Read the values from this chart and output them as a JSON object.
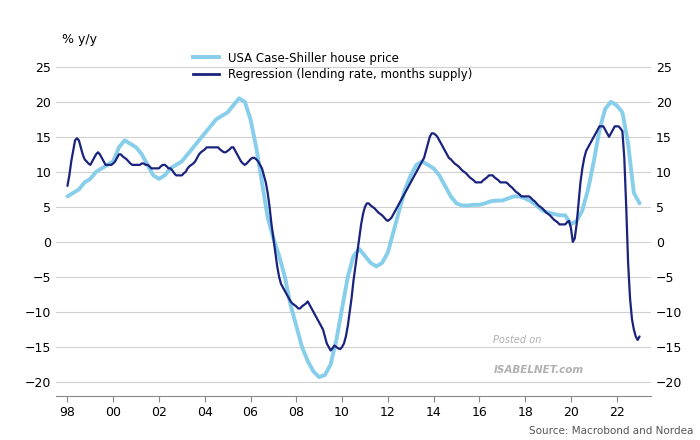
{
  "ylabel_left": "% y/y",
  "source_text": "Source: Macrobond and Nordea",
  "watermark_line1": "Posted on",
  "watermark_line2": "ISABELNET.com",
  "ylim": [
    -22,
    27
  ],
  "yticks": [
    -20,
    -15,
    -10,
    -5,
    0,
    5,
    10,
    15,
    20,
    25
  ],
  "bg_color": "#ffffff",
  "grid_color": "#d0d0d0",
  "cs_color": "#87CEEB",
  "cs_lw": 2.8,
  "reg_color": "#1a237e",
  "reg_lw": 1.6,
  "legend_cs": "USA Case-Shiller house price",
  "legend_reg": "Regression (lending rate, months supply)",
  "xtick_positions": [
    1998,
    2000,
    2002,
    2004,
    2006,
    2008,
    2010,
    2012,
    2014,
    2016,
    2018,
    2020,
    2022
  ],
  "xtick_labels": [
    "98",
    "00",
    "02",
    "04",
    "06",
    "08",
    "10",
    "12",
    "14",
    "16",
    "18",
    "20",
    "22"
  ],
  "xlim": [
    1997.5,
    2023.5
  ],
  "case_shiller_x": [
    1998.0,
    1998.25,
    1998.5,
    1998.75,
    1999.0,
    1999.25,
    1999.5,
    1999.75,
    2000.0,
    2000.25,
    2000.5,
    2000.75,
    2001.0,
    2001.25,
    2001.5,
    2001.75,
    2002.0,
    2002.25,
    2002.5,
    2002.75,
    2003.0,
    2003.25,
    2003.5,
    2003.75,
    2004.0,
    2004.25,
    2004.5,
    2004.75,
    2005.0,
    2005.25,
    2005.5,
    2005.75,
    2006.0,
    2006.25,
    2006.5,
    2006.75,
    2007.0,
    2007.25,
    2007.5,
    2007.75,
    2008.0,
    2008.25,
    2008.5,
    2008.75,
    2009.0,
    2009.25,
    2009.5,
    2009.75,
    2010.0,
    2010.25,
    2010.5,
    2010.75,
    2011.0,
    2011.25,
    2011.5,
    2011.75,
    2012.0,
    2012.25,
    2012.5,
    2012.75,
    2013.0,
    2013.25,
    2013.5,
    2013.75,
    2014.0,
    2014.25,
    2014.5,
    2014.75,
    2015.0,
    2015.25,
    2015.5,
    2015.75,
    2016.0,
    2016.25,
    2016.5,
    2016.75,
    2017.0,
    2017.25,
    2017.5,
    2017.75,
    2018.0,
    2018.25,
    2018.5,
    2018.75,
    2019.0,
    2019.25,
    2019.5,
    2019.75,
    2020.0,
    2020.25,
    2020.5,
    2020.75,
    2021.0,
    2021.25,
    2021.5,
    2021.75,
    2022.0,
    2022.25,
    2022.5,
    2022.75,
    2023.0
  ],
  "case_shiller_y": [
    6.5,
    7.0,
    7.5,
    8.5,
    9.0,
    10.0,
    10.5,
    11.0,
    11.5,
    13.5,
    14.5,
    14.0,
    13.5,
    12.5,
    11.0,
    9.5,
    9.0,
    9.5,
    10.5,
    11.0,
    11.5,
    12.5,
    13.5,
    14.5,
    15.5,
    16.5,
    17.5,
    18.0,
    18.5,
    19.5,
    20.5,
    20.0,
    17.5,
    13.5,
    8.5,
    3.5,
    0.5,
    -2.0,
    -5.0,
    -9.0,
    -12.0,
    -15.0,
    -17.0,
    -18.5,
    -19.3,
    -19.0,
    -17.5,
    -14.0,
    -9.5,
    -5.0,
    -2.0,
    -1.0,
    -2.0,
    -3.0,
    -3.5,
    -3.0,
    -1.5,
    1.5,
    4.5,
    7.5,
    9.5,
    11.0,
    11.5,
    11.0,
    10.5,
    9.5,
    8.0,
    6.5,
    5.5,
    5.2,
    5.2,
    5.3,
    5.3,
    5.5,
    5.8,
    5.9,
    5.9,
    6.2,
    6.5,
    6.5,
    6.2,
    5.8,
    5.2,
    4.5,
    4.2,
    4.0,
    3.8,
    3.8,
    2.5,
    3.0,
    4.5,
    7.5,
    11.5,
    16.0,
    19.0,
    20.0,
    19.5,
    18.5,
    14.0,
    7.0,
    5.5
  ],
  "regression_x": [
    1998.0,
    1998.083,
    1998.167,
    1998.25,
    1998.333,
    1998.417,
    1998.5,
    1998.583,
    1998.667,
    1998.75,
    1998.833,
    1998.917,
    1999.0,
    1999.083,
    1999.167,
    1999.25,
    1999.333,
    1999.417,
    1999.5,
    1999.583,
    1999.667,
    1999.75,
    1999.833,
    1999.917,
    2000.0,
    2000.083,
    2000.167,
    2000.25,
    2000.333,
    2000.417,
    2000.5,
    2000.583,
    2000.667,
    2000.75,
    2000.833,
    2000.917,
    2001.0,
    2001.083,
    2001.167,
    2001.25,
    2001.333,
    2001.417,
    2001.5,
    2001.583,
    2001.667,
    2001.75,
    2001.833,
    2001.917,
    2002.0,
    2002.083,
    2002.167,
    2002.25,
    2002.333,
    2002.417,
    2002.5,
    2002.583,
    2002.667,
    2002.75,
    2002.833,
    2002.917,
    2003.0,
    2003.083,
    2003.167,
    2003.25,
    2003.333,
    2003.417,
    2003.5,
    2003.583,
    2003.667,
    2003.75,
    2003.833,
    2003.917,
    2004.0,
    2004.083,
    2004.167,
    2004.25,
    2004.333,
    2004.417,
    2004.5,
    2004.583,
    2004.667,
    2004.75,
    2004.833,
    2004.917,
    2005.0,
    2005.083,
    2005.167,
    2005.25,
    2005.333,
    2005.417,
    2005.5,
    2005.583,
    2005.667,
    2005.75,
    2005.833,
    2005.917,
    2006.0,
    2006.083,
    2006.167,
    2006.25,
    2006.333,
    2006.417,
    2006.5,
    2006.583,
    2006.667,
    2006.75,
    2006.833,
    2006.917,
    2007.0,
    2007.083,
    2007.167,
    2007.25,
    2007.333,
    2007.417,
    2007.5,
    2007.583,
    2007.667,
    2007.75,
    2007.833,
    2007.917,
    2008.0,
    2008.083,
    2008.167,
    2008.25,
    2008.333,
    2008.417,
    2008.5,
    2008.583,
    2008.667,
    2008.75,
    2008.833,
    2008.917,
    2009.0,
    2009.083,
    2009.167,
    2009.25,
    2009.333,
    2009.417,
    2009.5,
    2009.583,
    2009.667,
    2009.75,
    2009.833,
    2009.917,
    2010.0,
    2010.083,
    2010.167,
    2010.25,
    2010.333,
    2010.417,
    2010.5,
    2010.583,
    2010.667,
    2010.75,
    2010.833,
    2010.917,
    2011.0,
    2011.083,
    2011.167,
    2011.25,
    2011.333,
    2011.417,
    2011.5,
    2011.583,
    2011.667,
    2011.75,
    2011.833,
    2011.917,
    2012.0,
    2012.083,
    2012.167,
    2012.25,
    2012.333,
    2012.417,
    2012.5,
    2012.583,
    2012.667,
    2012.75,
    2012.833,
    2012.917,
    2013.0,
    2013.083,
    2013.167,
    2013.25,
    2013.333,
    2013.417,
    2013.5,
    2013.583,
    2013.667,
    2013.75,
    2013.833,
    2013.917,
    2014.0,
    2014.083,
    2014.167,
    2014.25,
    2014.333,
    2014.417,
    2014.5,
    2014.583,
    2014.667,
    2014.75,
    2014.833,
    2014.917,
    2015.0,
    2015.083,
    2015.167,
    2015.25,
    2015.333,
    2015.417,
    2015.5,
    2015.583,
    2015.667,
    2015.75,
    2015.833,
    2015.917,
    2016.0,
    2016.083,
    2016.167,
    2016.25,
    2016.333,
    2016.417,
    2016.5,
    2016.583,
    2016.667,
    2016.75,
    2016.833,
    2016.917,
    2017.0,
    2017.083,
    2017.167,
    2017.25,
    2017.333,
    2017.417,
    2017.5,
    2017.583,
    2017.667,
    2017.75,
    2017.833,
    2017.917,
    2018.0,
    2018.083,
    2018.167,
    2018.25,
    2018.333,
    2018.417,
    2018.5,
    2018.583,
    2018.667,
    2018.75,
    2018.833,
    2018.917,
    2019.0,
    2019.083,
    2019.167,
    2019.25,
    2019.333,
    2019.417,
    2019.5,
    2019.583,
    2019.667,
    2019.75,
    2019.833,
    2019.917,
    2020.0,
    2020.083,
    2020.167,
    2020.25,
    2020.333,
    2020.417,
    2020.5,
    2020.583,
    2020.667,
    2020.75,
    2020.833,
    2020.917,
    2021.0,
    2021.083,
    2021.167,
    2021.25,
    2021.333,
    2021.417,
    2021.5,
    2021.583,
    2021.667,
    2021.75,
    2021.833,
    2021.917,
    2022.0,
    2022.083,
    2022.167,
    2022.25,
    2022.333,
    2022.417,
    2022.5,
    2022.583,
    2022.667,
    2022.75,
    2022.833,
    2022.917,
    2023.0
  ],
  "regression_y": [
    8.0,
    9.5,
    11.5,
    13.0,
    14.5,
    14.8,
    14.5,
    13.5,
    12.5,
    11.8,
    11.5,
    11.2,
    11.0,
    11.5,
    12.0,
    12.5,
    12.8,
    12.5,
    12.0,
    11.5,
    11.0,
    11.0,
    11.0,
    11.0,
    11.2,
    11.5,
    12.0,
    12.5,
    12.5,
    12.2,
    12.0,
    11.8,
    11.5,
    11.2,
    11.0,
    11.0,
    11.0,
    11.0,
    11.0,
    11.2,
    11.2,
    11.0,
    11.0,
    10.8,
    10.5,
    10.5,
    10.5,
    10.5,
    10.5,
    10.8,
    11.0,
    11.0,
    10.8,
    10.5,
    10.5,
    10.2,
    9.8,
    9.5,
    9.5,
    9.5,
    9.5,
    9.8,
    10.0,
    10.5,
    10.8,
    11.0,
    11.2,
    11.5,
    12.0,
    12.5,
    12.8,
    13.0,
    13.2,
    13.5,
    13.5,
    13.5,
    13.5,
    13.5,
    13.5,
    13.5,
    13.2,
    13.0,
    12.8,
    12.8,
    13.0,
    13.2,
    13.5,
    13.5,
    13.0,
    12.5,
    12.0,
    11.5,
    11.2,
    11.0,
    11.2,
    11.5,
    11.8,
    12.0,
    12.0,
    11.8,
    11.5,
    11.0,
    10.5,
    9.5,
    8.5,
    7.0,
    5.0,
    2.5,
    0.5,
    -1.5,
    -3.5,
    -5.0,
    -6.0,
    -6.5,
    -7.0,
    -7.5,
    -8.0,
    -8.5,
    -8.8,
    -9.0,
    -9.2,
    -9.5,
    -9.5,
    -9.2,
    -9.0,
    -8.8,
    -8.5,
    -9.0,
    -9.5,
    -10.0,
    -10.5,
    -11.0,
    -11.5,
    -12.0,
    -12.5,
    -13.5,
    -14.5,
    -15.0,
    -15.5,
    -15.2,
    -14.8,
    -15.0,
    -15.2,
    -15.3,
    -15.0,
    -14.5,
    -13.5,
    -12.0,
    -10.0,
    -8.0,
    -5.5,
    -3.5,
    -1.5,
    0.5,
    2.5,
    4.0,
    5.0,
    5.5,
    5.5,
    5.2,
    5.0,
    4.8,
    4.5,
    4.2,
    4.0,
    3.8,
    3.5,
    3.2,
    3.0,
    3.2,
    3.5,
    4.0,
    4.5,
    5.0,
    5.5,
    6.0,
    6.5,
    7.0,
    7.5,
    8.0,
    8.5,
    9.0,
    9.5,
    10.0,
    10.5,
    11.0,
    11.5,
    12.0,
    13.0,
    14.0,
    15.0,
    15.5,
    15.5,
    15.3,
    15.0,
    14.5,
    14.0,
    13.5,
    13.0,
    12.5,
    12.0,
    11.8,
    11.5,
    11.2,
    11.0,
    10.8,
    10.5,
    10.2,
    10.0,
    9.8,
    9.5,
    9.2,
    9.0,
    8.8,
    8.5,
    8.5,
    8.5,
    8.5,
    8.8,
    9.0,
    9.2,
    9.5,
    9.5,
    9.5,
    9.2,
    9.0,
    8.8,
    8.5,
    8.5,
    8.5,
    8.5,
    8.3,
    8.0,
    7.8,
    7.5,
    7.2,
    7.0,
    6.8,
    6.5,
    6.5,
    6.5,
    6.5,
    6.5,
    6.3,
    6.0,
    5.8,
    5.5,
    5.2,
    5.0,
    4.8,
    4.5,
    4.2,
    4.0,
    3.8,
    3.5,
    3.2,
    3.0,
    2.8,
    2.5,
    2.5,
    2.5,
    2.5,
    2.8,
    3.0,
    2.0,
    0.0,
    0.5,
    2.5,
    5.5,
    8.5,
    10.5,
    12.0,
    13.0,
    13.5,
    14.0,
    14.5,
    15.0,
    15.5,
    16.0,
    16.5,
    16.5,
    16.5,
    16.0,
    15.5,
    15.0,
    15.5,
    16.0,
    16.5,
    16.5,
    16.5,
    16.2,
    15.8,
    12.0,
    5.0,
    -3.0,
    -8.0,
    -11.0,
    -12.5,
    -13.5,
    -14.0,
    -13.5
  ]
}
